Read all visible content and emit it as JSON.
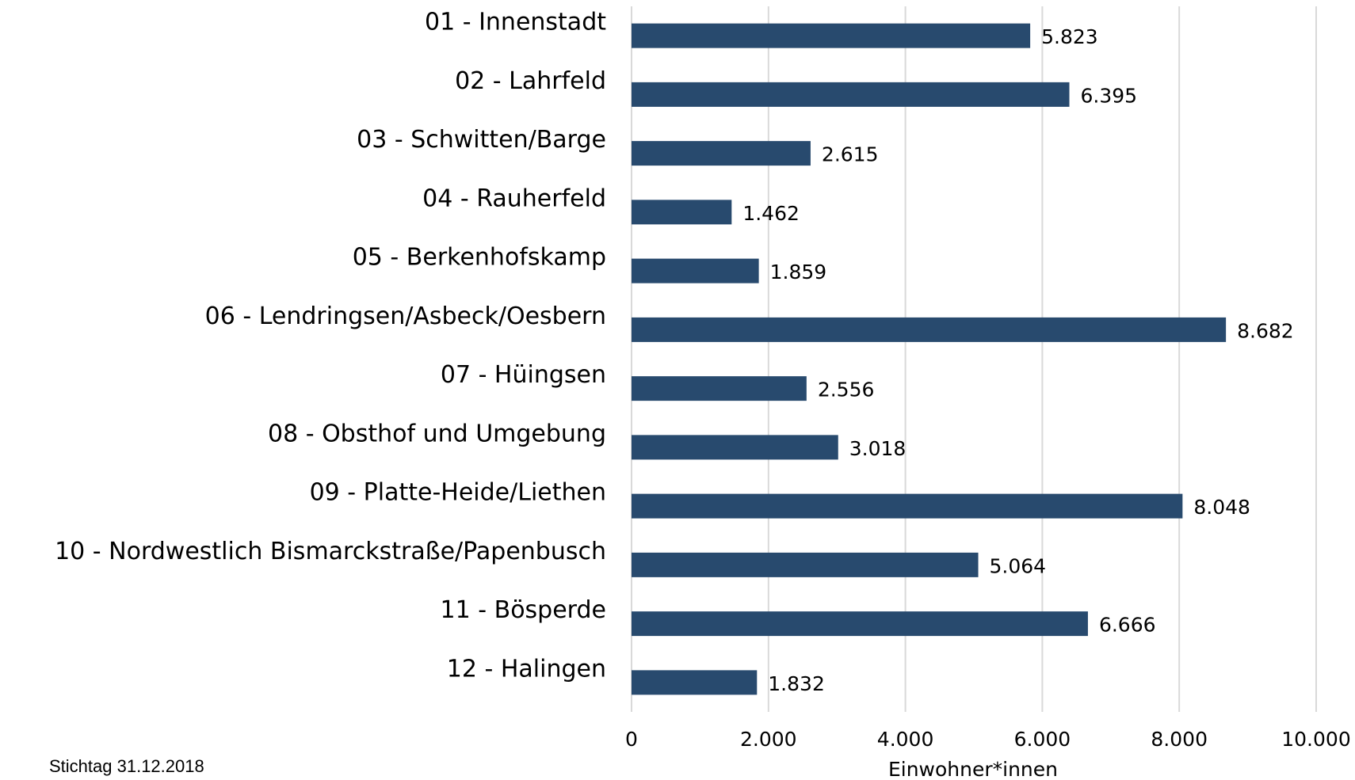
{
  "chart_data": {
    "type": "hbar",
    "categories": [
      "01 - Innenstadt",
      "02 - Lahrfeld",
      "03 - Schwitten/Barge",
      "04 - Rauherfeld",
      "05 - Berkenhofskamp",
      "06 - Lendringsen/Asbeck/Oesbern",
      "07 - Hüingsen",
      "08 - Obsthof und Umgebung",
      "09 - Platte-Heide/Liethen",
      "10 - Nordwestlich Bismarckstraße/Papenbusch",
      "11 - Bösperde",
      "12 - Halingen"
    ],
    "values": [
      5823,
      6395,
      2615,
      1462,
      1859,
      8682,
      2556,
      3018,
      8048,
      5064,
      6666,
      1832
    ],
    "value_labels": [
      "5.823",
      "6.395",
      "2.615",
      "1.462",
      "1.859",
      "8.682",
      "2.556",
      "3.018",
      "8.048",
      "5.064",
      "6.666",
      "1.832"
    ],
    "color": "#284a6e",
    "xlim": [
      0,
      10000
    ],
    "xticks": [
      0,
      {
        "value": 2000,
        "label": "2.000"
      },
      {
        "value": 4000,
        "label": "4.000"
      },
      {
        "value": 6000,
        "label": "6.000"
      },
      {
        "value": 8000,
        "label": "8.000"
      },
      {
        "value": 10000,
        "label": "10.000"
      }
    ],
    "xlabel": "Einwohner*innen",
    "grid": true,
    "note": "Stichtag 31.12.2018"
  }
}
